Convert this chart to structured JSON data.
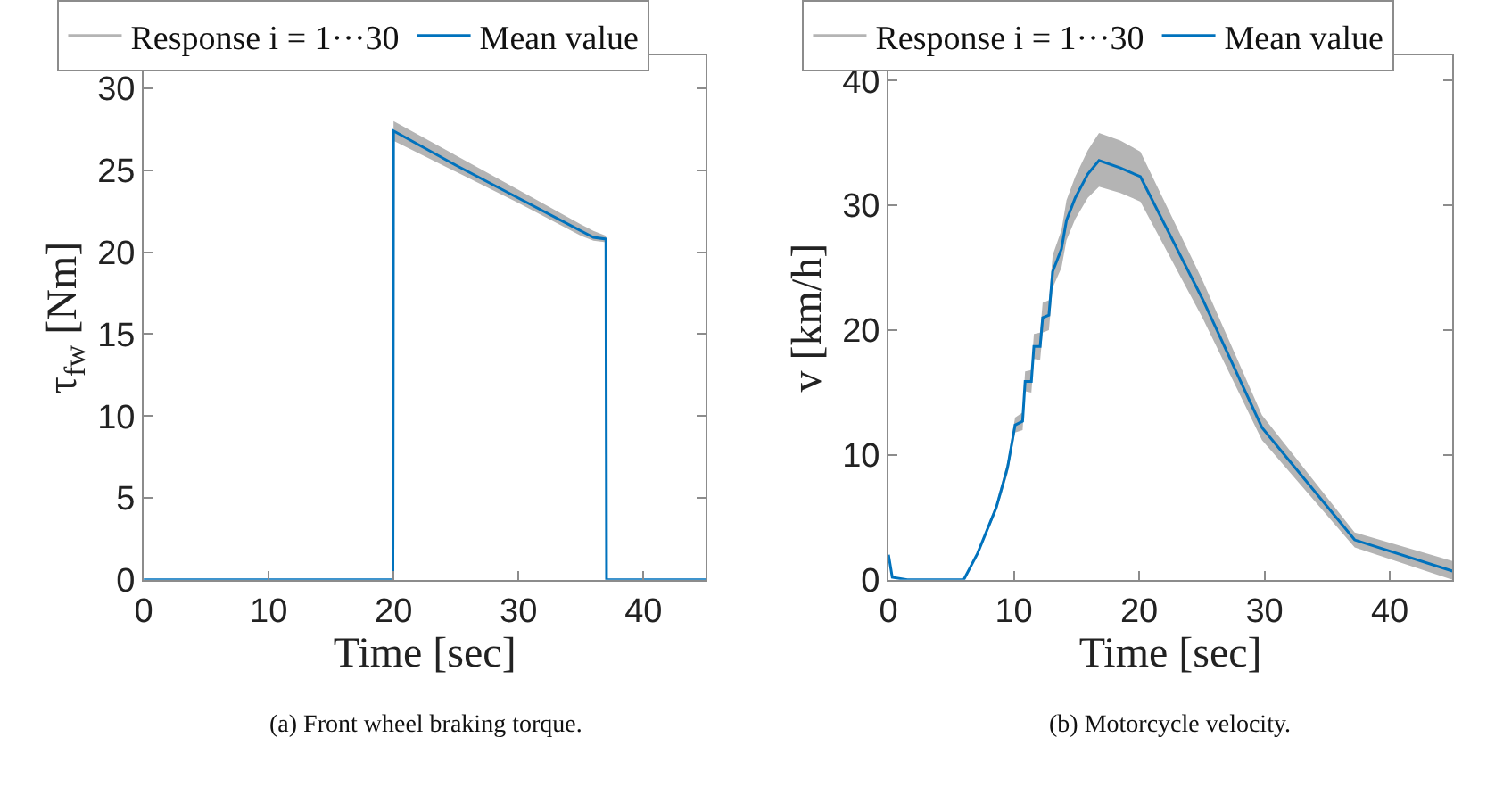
{
  "chart_data": [
    {
      "type": "line",
      "xlabel": "Time [sec]",
      "ylabel": "τ$_{fw}$ [Nm]",
      "xlim": [
        0,
        45
      ],
      "ylim": [
        0,
        32
      ],
      "xticks": [
        0,
        10,
        20,
        30,
        40
      ],
      "yticks": [
        0,
        5,
        10,
        15,
        20,
        25,
        30
      ],
      "legend": "top",
      "marker": "none",
      "line_style": "solid",
      "annotations": [
        "(a) Front wheel braking torque."
      ],
      "series": [
        {
          "name": "Response i = 1···30",
          "color": "#b4b4b4"
        },
        {
          "name": "Mean value",
          "color": "#0072bd",
          "x": [
            0,
            19.95,
            20,
            25,
            30,
            35,
            36,
            37,
            37.05,
            45
          ],
          "values": [
            0,
            0,
            27.4,
            25.3,
            23.3,
            21.3,
            20.9,
            20.8,
            0,
            0
          ],
          "lower": [
            0,
            0,
            26.8,
            24.9,
            23.0,
            21.0,
            20.7,
            20.6,
            0,
            0
          ],
          "upper": [
            0,
            0,
            28.0,
            25.9,
            23.8,
            21.7,
            21.3,
            21.0,
            0,
            0
          ]
        }
      ]
    },
    {
      "type": "line",
      "xlabel": "Time [sec]",
      "ylabel": "v [km/h]",
      "xlim": [
        0,
        45
      ],
      "ylim": [
        0,
        42
      ],
      "xticks": [
        0,
        10,
        20,
        30,
        40
      ],
      "yticks": [
        0,
        10,
        20,
        30,
        40
      ],
      "legend": "top",
      "marker": "none",
      "line_style": "solid",
      "annotations": [
        "(b) Motorcycle velocity."
      ],
      "series": [
        {
          "name": "Response i = 1···30",
          "color": "#b4b4b4"
        },
        {
          "name": "Mean value",
          "color": "#0072bd",
          "x": [
            0,
            0.3,
            1.5,
            6,
            7.1,
            8.6,
            9.5,
            10.1,
            10.7,
            10.9,
            11.4,
            11.6,
            12.1,
            12.3,
            12.8,
            13.1,
            13.8,
            14.2,
            14.9,
            15.9,
            16.8,
            18.5,
            20.1,
            25.1,
            29.8,
            37.2,
            45
          ],
          "values": [
            2.0,
            0.2,
            0,
            0,
            2.1,
            5.8,
            9.0,
            12.4,
            12.7,
            15.9,
            15.9,
            18.7,
            18.7,
            21.0,
            21.2,
            24.7,
            26.5,
            28.8,
            30.6,
            32.5,
            33.6,
            33.0,
            32.3,
            22.4,
            12.2,
            3.2,
            0.7
          ],
          "lower": [
            2.0,
            0.2,
            0,
            0,
            2.0,
            5.5,
            8.5,
            11.8,
            12.0,
            15.1,
            15.0,
            17.7,
            17.6,
            19.8,
            20.0,
            23.4,
            25.0,
            27.2,
            28.9,
            30.6,
            31.5,
            31.0,
            30.3,
            20.9,
            11.2,
            2.6,
            0
          ],
          "upper": [
            2.0,
            0.2,
            0,
            0,
            2.2,
            6.1,
            9.5,
            13.0,
            13.4,
            16.7,
            16.8,
            19.7,
            19.8,
            22.2,
            22.4,
            26.0,
            28.0,
            30.4,
            32.3,
            34.4,
            35.8,
            35.2,
            34.3,
            23.9,
            13.2,
            3.8,
            1.5
          ]
        }
      ]
    }
  ]
}
